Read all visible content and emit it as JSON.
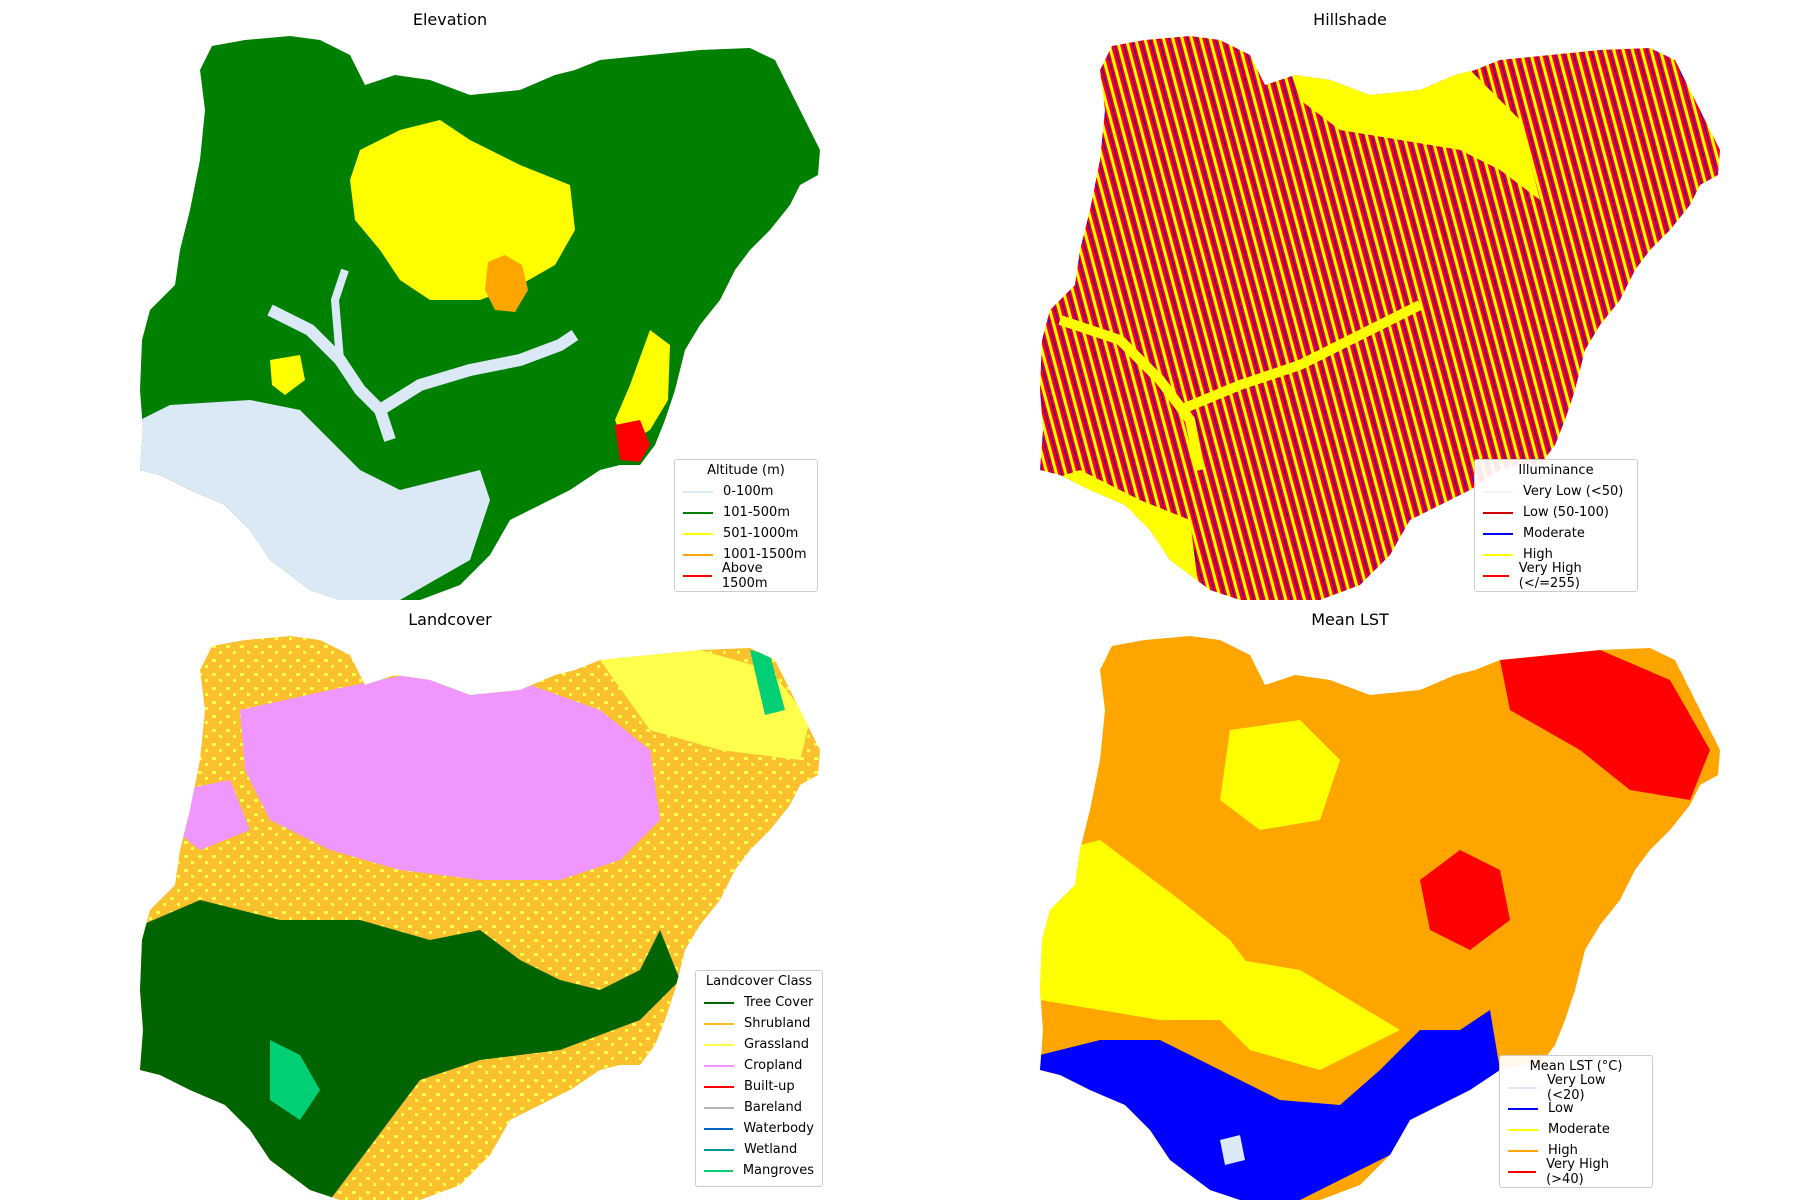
{
  "maps": [
    {
      "id": "elevation",
      "title": "Elevation",
      "base_color": "#008000",
      "legend": {
        "title": "Altitude (m)",
        "items": [
          {
            "label": "0-100m",
            "color": "#dbe8f6"
          },
          {
            "label": "101-500m",
            "color": "#008000"
          },
          {
            "label": "501-1000m",
            "color": "#ffff00"
          },
          {
            "label": "1001-1500m",
            "color": "#ffa500"
          },
          {
            "label": "Above 1500m",
            "color": "#ff0000"
          }
        ]
      }
    },
    {
      "id": "hillshade",
      "title": "Hillshade",
      "base_color": "#ff0000",
      "legend": {
        "title": "Illuminance",
        "items": [
          {
            "label": "Very Low (<50)",
            "color": "#ffffff"
          },
          {
            "label": "Low (50-100)",
            "color": "#cc0000"
          },
          {
            "label": "Moderate",
            "color": "#0000ff"
          },
          {
            "label": "High",
            "color": "#ffff00"
          },
          {
            "label": "Very High (</=255)",
            "color": "#ff0000"
          }
        ]
      }
    },
    {
      "id": "landcover",
      "title": "Landcover",
      "base_color": "#fbc02d",
      "legend": {
        "title": "Landcover Class",
        "items": [
          {
            "label": "Tree Cover",
            "color": "#006400"
          },
          {
            "label": "Shrubland",
            "color": "#ffbb22"
          },
          {
            "label": "Grassland",
            "color": "#ffff4c"
          },
          {
            "label": "Cropland",
            "color": "#f096ff"
          },
          {
            "label": "Built-up",
            "color": "#fa0000"
          },
          {
            "label": "Bareland",
            "color": "#b4b4b4"
          },
          {
            "label": "Waterbody",
            "color": "#0064c8"
          },
          {
            "label": "Wetland",
            "color": "#0096a0"
          },
          {
            "label": "Mangroves",
            "color": "#00cf75"
          }
        ]
      }
    },
    {
      "id": "mean-lst",
      "title": "Mean LST",
      "base_color": "#ffa500",
      "legend": {
        "title": "Mean LST (°C)",
        "items": [
          {
            "label": "Very Low (<20)",
            "color": "#dbe8f6"
          },
          {
            "label": "Low",
            "color": "#0000ff"
          },
          {
            "label": "Moderate",
            "color": "#ffff00"
          },
          {
            "label": "High",
            "color": "#ffa500"
          },
          {
            "label": "Very High (>40)",
            "color": "#ff0000"
          }
        ]
      }
    }
  ]
}
